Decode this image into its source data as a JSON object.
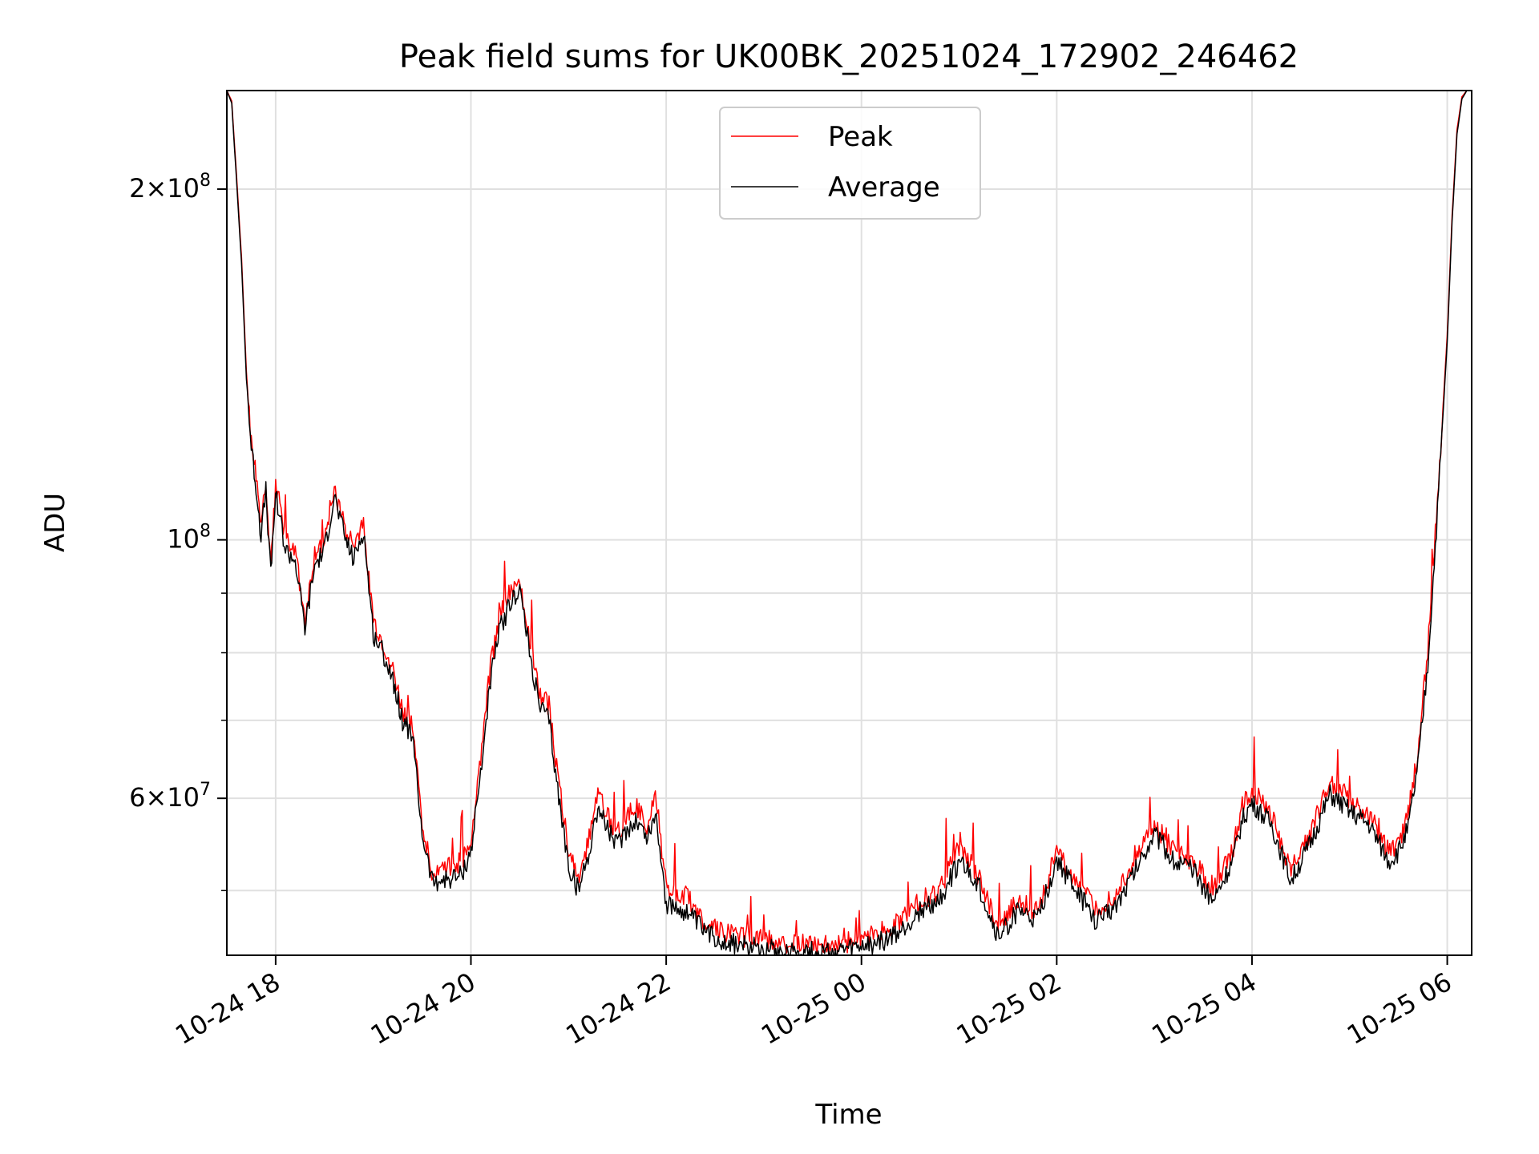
{
  "chart_data": {
    "type": "line",
    "title": "Peak field sums for UK00BK_20251024_172902_246462",
    "xlabel": "Time",
    "ylabel": "ADU",
    "yscale": "log",
    "ylim": [
      44000000,
      243000000
    ],
    "xlim_hours": [
      17.5,
      30.25
    ],
    "xticks": [
      {
        "hour": 18,
        "label": "10-24 18"
      },
      {
        "hour": 20,
        "label": "10-24 20"
      },
      {
        "hour": 22,
        "label": "10-24 22"
      },
      {
        "hour": 24,
        "label": "10-25 00"
      },
      {
        "hour": 26,
        "label": "10-25 02"
      },
      {
        "hour": 28,
        "label": "10-25 04"
      },
      {
        "hour": 30,
        "label": "10-25 06"
      }
    ],
    "yticks_major": [
      {
        "value": 200000000,
        "mant": "2",
        "exp": "8"
      },
      {
        "value": 100000000,
        "mant": "",
        "exp": "8"
      },
      {
        "value": 60000000,
        "mant": "6",
        "exp": "7"
      }
    ],
    "yticks_minor": [
      50000000,
      70000000,
      80000000,
      90000000
    ],
    "grid": true,
    "legend_position": "top-center",
    "series": [
      {
        "name": "Peak",
        "color": "#ff0000",
        "x_hours": [
          17.5,
          17.55,
          17.6,
          17.65,
          17.7,
          17.75,
          17.8,
          17.85,
          17.9,
          17.95,
          18.0,
          18.1,
          18.2,
          18.3,
          18.4,
          18.5,
          18.6,
          18.7,
          18.8,
          18.9,
          19.0,
          19.1,
          19.2,
          19.3,
          19.4,
          19.5,
          19.6,
          19.7,
          19.8,
          19.9,
          20.0,
          20.1,
          20.2,
          20.3,
          20.4,
          20.5,
          20.6,
          20.7,
          20.8,
          20.9,
          21.0,
          21.1,
          21.2,
          21.3,
          21.4,
          21.5,
          21.6,
          21.7,
          21.8,
          21.9,
          22.0,
          22.2,
          22.4,
          22.6,
          22.8,
          23.0,
          23.2,
          23.4,
          23.6,
          23.8,
          24.0,
          24.2,
          24.4,
          24.6,
          24.8,
          25.0,
          25.2,
          25.4,
          25.6,
          25.8,
          26.0,
          26.2,
          26.4,
          26.6,
          26.8,
          27.0,
          27.2,
          27.4,
          27.6,
          27.8,
          27.9,
          28.0,
          28.2,
          28.4,
          28.6,
          28.8,
          29.0,
          29.2,
          29.4,
          29.5,
          29.6,
          29.7,
          29.8,
          29.9,
          30.0,
          30.05,
          30.1,
          30.15,
          30.2,
          30.25
        ],
        "values": [
          243000000,
          238000000,
          205000000,
          175000000,
          140000000,
          122000000,
          113000000,
          103000000,
          112000000,
          95000000,
          112000000,
          100000000,
          98000000,
          85000000,
          97000000,
          100000000,
          111000000,
          103000000,
          98000000,
          104000000,
          85000000,
          81000000,
          77000000,
          71000000,
          69000000,
          57000000,
          52000000,
          52000000,
          52500000,
          53000000,
          55000000,
          65000000,
          78000000,
          86000000,
          90000000,
          93000000,
          82000000,
          74000000,
          72000000,
          62000000,
          54000000,
          51000000,
          55000000,
          61000000,
          58000000,
          56000000,
          58000000,
          59000000,
          57000000,
          60000000,
          50000000,
          49500000,
          47000000,
          46000000,
          45500000,
          45500000,
          45000000,
          45000000,
          44800000,
          45000000,
          45500000,
          46000000,
          47000000,
          49000000,
          50000000,
          54500000,
          51500000,
          46500000,
          49000000,
          48000000,
          54000000,
          51000000,
          48000000,
          49500000,
          53000000,
          57000000,
          54000000,
          53000000,
          50000000,
          54000000,
          59000000,
          61000000,
          58000000,
          52000000,
          56000000,
          62000000,
          60000000,
          58000000,
          54000000,
          55000000,
          58000000,
          66000000,
          80000000,
          108000000,
          150000000,
          190000000,
          225000000,
          240000000,
          243000000,
          243000000
        ]
      },
      {
        "name": "Average",
        "color": "#000000",
        "x_hours": [
          17.5,
          17.55,
          17.6,
          17.65,
          17.7,
          17.75,
          17.8,
          17.85,
          17.9,
          17.95,
          18.0,
          18.1,
          18.2,
          18.3,
          18.4,
          18.5,
          18.6,
          18.7,
          18.8,
          18.9,
          19.0,
          19.1,
          19.2,
          19.3,
          19.4,
          19.5,
          19.6,
          19.7,
          19.8,
          19.9,
          20.0,
          20.1,
          20.2,
          20.3,
          20.4,
          20.5,
          20.6,
          20.7,
          20.8,
          20.9,
          21.0,
          21.1,
          21.2,
          21.3,
          21.4,
          21.5,
          21.6,
          21.7,
          21.8,
          21.9,
          22.0,
          22.2,
          22.4,
          22.6,
          22.8,
          23.0,
          23.2,
          23.4,
          23.6,
          23.8,
          24.0,
          24.2,
          24.4,
          24.6,
          24.8,
          25.0,
          25.2,
          25.4,
          25.6,
          25.8,
          26.0,
          26.2,
          26.4,
          26.6,
          26.8,
          27.0,
          27.2,
          27.4,
          27.6,
          27.8,
          27.9,
          28.0,
          28.2,
          28.4,
          28.6,
          28.8,
          29.0,
          29.2,
          29.4,
          29.5,
          29.6,
          29.7,
          29.8,
          29.9,
          30.0,
          30.05,
          30.1,
          30.15,
          30.2,
          30.25
        ],
        "values": [
          243000000,
          237000000,
          203000000,
          173000000,
          138000000,
          120000000,
          111000000,
          101000000,
          110000000,
          93000000,
          110000000,
          98000000,
          96000000,
          84000000,
          95000000,
          98000000,
          109000000,
          101000000,
          96000000,
          102000000,
          83000000,
          80000000,
          76000000,
          70000000,
          68000000,
          56000000,
          51000000,
          51000000,
          51200000,
          51500000,
          54000000,
          63000000,
          76000000,
          84000000,
          88000000,
          91000000,
          80000000,
          72000000,
          70000000,
          60000000,
          52500000,
          50000000,
          53500000,
          59000000,
          56500000,
          54500000,
          56500000,
          57500000,
          55500000,
          58000000,
          48500000,
          48000000,
          46000000,
          45200000,
          44800000,
          44800000,
          44400000,
          44400000,
          44200000,
          44300000,
          44700000,
          45200000,
          46000000,
          48000000,
          49000000,
          53000000,
          50500000,
          45500000,
          48000000,
          47000000,
          53000000,
          50000000,
          47000000,
          48500000,
          52000000,
          56000000,
          53000000,
          52000000,
          49000000,
          53000000,
          57500000,
          59500000,
          57000000,
          51000000,
          55000000,
          60500000,
          58500000,
          57000000,
          53000000,
          54000000,
          56500000,
          64000000,
          78000000,
          106000000,
          148000000,
          188000000,
          223000000,
          239000000,
          243000000,
          243000000
        ]
      }
    ]
  }
}
